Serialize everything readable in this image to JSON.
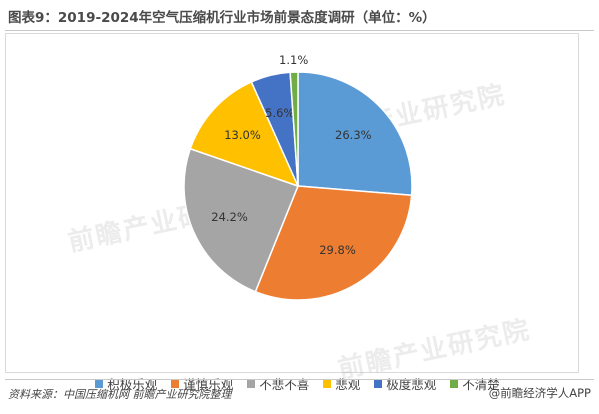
{
  "title": "图表9：2019-2024年空气压缩机行业市场前景态度调研（单位：%）",
  "chart_data": {
    "type": "pie",
    "title": "图表9：2019-2024年空气压缩机行业市场前景态度调研（单位：%）",
    "labels": [
      "积极乐观",
      "谨慎乐观",
      "不悲不喜",
      "悲观",
      "极度悲观",
      "不清楚"
    ],
    "values": [
      26.3,
      29.8,
      24.2,
      13.0,
      5.6,
      1.1
    ],
    "value_labels": [
      "26.3%",
      "29.8%",
      "24.2%",
      "13.0%",
      "5.6%",
      "1.1%"
    ],
    "colors": [
      "#5b9bd5",
      "#ed7d31",
      "#a5a5a5",
      "#ffc000",
      "#4472c4",
      "#70ad47"
    ],
    "legend_position": "bottom"
  },
  "watermark": "前瞻产业研究院",
  "footer": {
    "source": "资料来源：中国压缩机网 前瞻产业研究院整理",
    "brand": "@前瞻经济学人APP"
  }
}
